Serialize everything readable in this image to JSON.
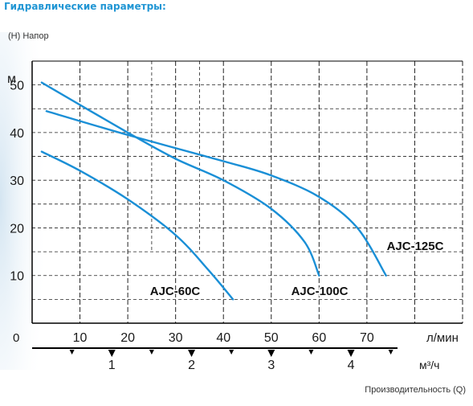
{
  "page_title": "Гидравлические параметры:",
  "colors": {
    "curve": "#1a8fd6",
    "title": "#2196d4",
    "grid": "#222222",
    "frame": "#000000",
    "text": "#1a1a1a"
  },
  "chart_data": {
    "type": "line",
    "ylabel_note": "(H) Напор",
    "y_unit": "м",
    "x_unit": "л/мин",
    "x2_unit": "м³/ч",
    "xlabel_note": "Производительность (Q)",
    "xlim": [
      0,
      90
    ],
    "ylim": [
      0,
      55
    ],
    "origin_label": "0",
    "x_ticks": [
      10,
      20,
      30,
      40,
      50,
      60,
      70
    ],
    "y_ticks": [
      10,
      20,
      30,
      40,
      50
    ],
    "x2_ticks": [
      1,
      2,
      3,
      4
    ],
    "grid": "dashed",
    "series": [
      {
        "name": "AJC-60C",
        "x": [
          2,
          10,
          20,
          30,
          37,
          42
        ],
        "y": [
          36,
          32,
          26,
          18.5,
          11,
          5
        ]
      },
      {
        "name": "AJC-100C",
        "x": [
          2,
          20,
          30,
          40,
          50,
          57,
          60
        ],
        "y": [
          50.5,
          40,
          34.5,
          30,
          24,
          17,
          10
        ]
      },
      {
        "name": "AJC-125C",
        "x": [
          3,
          20,
          40,
          50,
          60,
          68,
          74
        ],
        "y": [
          44.5,
          39.5,
          34,
          31,
          26.5,
          20,
          10
        ]
      }
    ]
  }
}
